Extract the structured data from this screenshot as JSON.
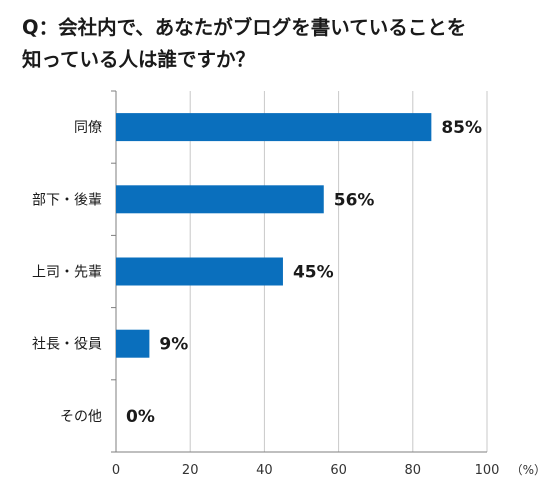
{
  "chart_data": {
    "type": "bar",
    "orientation": "horizontal",
    "title_lines": [
      "Q：会社内で、あなたがブログを書いていることを",
      "知っている人は誰ですか？"
    ],
    "categories": [
      "同僚",
      "部下・後輩",
      "上司・先輩",
      "社長・役員",
      "その他"
    ],
    "values": [
      85,
      56,
      45,
      9,
      0
    ],
    "value_labels": [
      "85%",
      "56%",
      "45%",
      "9%",
      "0%"
    ],
    "xlim": [
      0,
      100
    ],
    "xticks": [
      0,
      20,
      40,
      60,
      80,
      100
    ],
    "x_unit": "（%）",
    "grid": true,
    "legend": "none",
    "bar_color": "#0a6fbd"
  }
}
